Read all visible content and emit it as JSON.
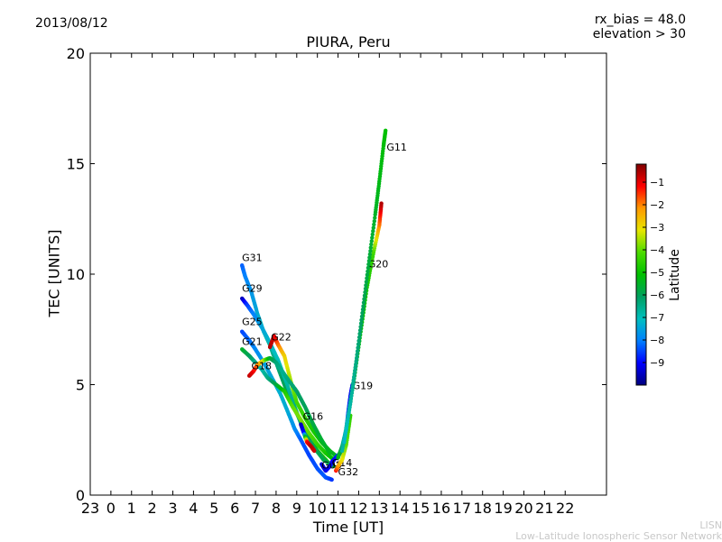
{
  "header": {
    "date": "2013/08/12",
    "rx_bias": "rx_bias = 48.0",
    "elevation": "elevation > 30"
  },
  "footer": {
    "credit_short": "LISN",
    "credit_long": "Low-Latitude Ionospheric Sensor Network"
  },
  "chart_data": {
    "type": "scatter",
    "title": "PIURA, Peru",
    "xlabel": "Time [UT]",
    "ylabel": "TEC [UNITS]",
    "xlim": [
      -1,
      24
    ],
    "ylim": [
      0,
      20
    ],
    "x_tick_labels": [
      "23",
      "0",
      "1",
      "2",
      "3",
      "4",
      "5",
      "6",
      "7",
      "8",
      "9",
      "10",
      "11",
      "12",
      "13",
      "14",
      "15",
      "16",
      "17",
      "18",
      "19",
      "20",
      "21",
      "22"
    ],
    "y_ticks": [
      0,
      5,
      10,
      15,
      20
    ],
    "colorbar": {
      "label": "Latitude",
      "min": -10,
      "max": -0.2,
      "ticks": [
        -1,
        -2,
        -3,
        -4,
        -5,
        -6,
        -7,
        -8,
        -9
      ],
      "tick_labels": [
        "−1",
        "−2",
        "−3",
        "−4",
        "−5",
        "−6",
        "−7",
        "−8",
        "−9"
      ],
      "colormap": [
        "#00007f",
        "#0000ff",
        "#007fff",
        "#00bfbf",
        "#00a060",
        "#00c000",
        "#4cdc00",
        "#e6e600",
        "#ff9900",
        "#ff0000",
        "#7f0000"
      ]
    },
    "series": [
      {
        "name": "G31",
        "points": [
          [
            6.35,
            10.4,
            -8.3
          ],
          [
            6.5,
            9.9,
            -8.0
          ],
          [
            6.8,
            9.2,
            -7.7
          ],
          [
            7.1,
            8.2,
            -7.4
          ],
          [
            7.4,
            7.4,
            -7.0
          ],
          [
            7.7,
            6.8,
            -6.7
          ],
          [
            8.0,
            6.0,
            -6.4
          ],
          [
            8.4,
            5.0,
            -6.0
          ],
          [
            8.8,
            4.1,
            -5.7
          ],
          [
            9.2,
            3.3,
            -5.4
          ],
          [
            9.6,
            2.5,
            -5.2
          ],
          [
            10.1,
            1.9,
            -5.0
          ],
          [
            10.5,
            1.5,
            -4.9
          ]
        ],
        "label_at": [
          6.35,
          10.6
        ]
      },
      {
        "name": "G29",
        "points": [
          [
            6.35,
            8.9,
            -9.6
          ],
          [
            6.6,
            8.6,
            -8.6
          ],
          [
            6.9,
            8.2,
            -8.0
          ],
          [
            7.3,
            7.6,
            -7.5
          ],
          [
            7.7,
            6.9,
            -7.2
          ],
          [
            8.1,
            6.1,
            -7.0
          ],
          [
            8.5,
            5.1,
            -6.8
          ],
          [
            8.9,
            4.0,
            -6.5
          ],
          [
            9.3,
            3.0,
            -6.2
          ],
          [
            9.8,
            2.2,
            -6.0
          ],
          [
            10.3,
            1.6,
            -5.9
          ],
          [
            10.8,
            1.3,
            -5.8
          ]
        ],
        "label_at": [
          6.35,
          9.2
        ]
      },
      {
        "name": "G25",
        "points": [
          [
            6.35,
            7.4,
            -8.5
          ],
          [
            6.7,
            7.0,
            -8.2
          ],
          [
            7.0,
            6.6,
            -7.9
          ],
          [
            7.4,
            6.0,
            -7.6
          ],
          [
            7.8,
            5.3,
            -7.4
          ],
          [
            8.2,
            4.6,
            -7.3
          ],
          [
            8.6,
            3.7,
            -7.4
          ],
          [
            8.9,
            3.0,
            -7.8
          ],
          [
            9.2,
            2.5,
            -8.3
          ],
          [
            9.6,
            1.8,
            -8.5
          ],
          [
            10.0,
            1.2,
            -8.4
          ],
          [
            10.4,
            0.8,
            -8.3
          ],
          [
            10.7,
            0.7,
            -8.6
          ]
        ],
        "label_at": [
          6.35,
          7.7
        ]
      },
      {
        "name": "G21",
        "points": [
          [
            6.35,
            6.6,
            -5.5
          ],
          [
            6.7,
            6.3,
            -6.0
          ],
          [
            7.0,
            6.0,
            -6.5
          ],
          [
            7.3,
            5.7,
            -6.9
          ],
          [
            7.6,
            5.3,
            -6.5
          ],
          [
            8.0,
            5.0,
            -5.8
          ],
          [
            8.4,
            4.7,
            -4.8
          ],
          [
            8.8,
            4.0,
            -4.0
          ],
          [
            9.2,
            3.4,
            -3.8
          ],
          [
            9.6,
            2.8,
            -4.0
          ],
          [
            10.0,
            2.3,
            -4.4
          ],
          [
            10.4,
            1.9,
            -4.8
          ],
          [
            10.8,
            1.6,
            -5.2
          ]
        ],
        "label_at": [
          6.35,
          6.8
        ]
      },
      {
        "name": "G22",
        "points": [
          [
            7.7,
            6.7,
            -0.6
          ],
          [
            7.9,
            7.2,
            -0.8
          ],
          [
            8.1,
            6.8,
            -1.8
          ],
          [
            8.4,
            6.3,
            -2.8
          ],
          [
            8.7,
            5.2,
            -3.6
          ],
          [
            9.0,
            4.2,
            -4.2
          ],
          [
            9.4,
            3.5,
            -4.5
          ],
          [
            9.8,
            2.9,
            -4.8
          ],
          [
            10.2,
            2.4,
            -5.0
          ],
          [
            10.6,
            2.0,
            -5.3
          ],
          [
            11.0,
            1.7,
            -5.6
          ]
        ],
        "label_at": [
          7.75,
          7.0
        ]
      },
      {
        "name": "G18",
        "points": [
          [
            6.7,
            5.4,
            -0.7
          ],
          [
            6.9,
            5.6,
            -1.0
          ],
          [
            7.1,
            5.9,
            -1.8
          ],
          [
            7.4,
            6.1,
            -3.2
          ],
          [
            7.7,
            6.2,
            -5.5
          ],
          [
            8.0,
            6.0,
            -6.3
          ],
          [
            8.3,
            5.6,
            -6.6
          ],
          [
            8.6,
            5.2,
            -6.4
          ],
          [
            9.0,
            4.7,
            -6.2
          ],
          [
            9.4,
            4.0,
            -6.0
          ],
          [
            9.8,
            3.2,
            -5.8
          ],
          [
            10.2,
            2.5,
            -5.6
          ],
          [
            10.6,
            1.9,
            -5.4
          ]
        ],
        "label_at": [
          6.8,
          5.7
        ]
      },
      {
        "name": "G16",
        "points": [
          [
            9.2,
            3.2,
            -9.6
          ],
          [
            9.35,
            2.8,
            -9.0
          ],
          [
            9.5,
            2.4,
            -1.2
          ],
          [
            9.7,
            2.2,
            -0.6
          ],
          [
            9.85,
            2.0,
            -0.8
          ]
        ],
        "label_at": [
          9.3,
          3.4
        ]
      },
      {
        "name": "G03",
        "points": [
          [
            10.2,
            1.4,
            -9.3
          ],
          [
            10.4,
            1.1,
            -9.2
          ],
          [
            10.6,
            1.3,
            -9.0
          ],
          [
            10.8,
            1.6,
            -8.7
          ]
        ],
        "label_at": [
          10.2,
          1.2
        ]
      },
      {
        "name": "G14",
        "points": [
          [
            10.7,
            1.5,
            -9.2
          ],
          [
            10.9,
            1.7,
            -8.9
          ],
          [
            11.1,
            1.9,
            -8.5
          ],
          [
            11.3,
            2.0,
            -8.2
          ]
        ],
        "label_at": [
          10.7,
          1.3
        ]
      },
      {
        "name": "G32",
        "points": [
          [
            10.9,
            1.1,
            -1.2
          ],
          [
            11.0,
            1.3,
            -2.0
          ],
          [
            11.2,
            1.6,
            -3.0
          ],
          [
            11.4,
            2.3,
            -4.0
          ],
          [
            11.6,
            3.6,
            -4.5
          ]
        ],
        "label_at": [
          11.0,
          0.9
        ]
      },
      {
        "name": "G19",
        "points": [
          [
            11.0,
            1.7,
            -5.2
          ],
          [
            11.2,
            2.2,
            -6.0
          ],
          [
            11.4,
            3.0,
            -8.0
          ],
          [
            11.5,
            3.8,
            -8.6
          ],
          [
            11.6,
            4.5,
            -9.0
          ],
          [
            11.7,
            5.0,
            -9.3
          ]
        ],
        "label_at": [
          11.7,
          4.8
        ]
      },
      {
        "name": "G20",
        "points": [
          [
            11.2,
            2.0,
            -6.8
          ],
          [
            11.5,
            3.6,
            -6.2
          ],
          [
            11.8,
            5.4,
            -5.6
          ],
          [
            12.1,
            7.4,
            -5.2
          ],
          [
            12.4,
            9.4,
            -4.8
          ],
          [
            12.7,
            10.9,
            -4.4
          ],
          [
            13.0,
            12.2,
            -2.0
          ],
          [
            13.1,
            13.2,
            -0.6
          ]
        ],
        "label_at": [
          12.45,
          10.3
        ]
      },
      {
        "name": "G11",
        "points": [
          [
            11.3,
            2.4,
            -7.2
          ],
          [
            11.6,
            4.2,
            -6.8
          ],
          [
            11.9,
            6.2,
            -6.4
          ],
          [
            12.2,
            8.4,
            -6.0
          ],
          [
            12.5,
            10.6,
            -5.7
          ],
          [
            12.8,
            12.7,
            -5.5
          ],
          [
            13.0,
            14.2,
            -5.3
          ],
          [
            13.2,
            15.8,
            -5.2
          ],
          [
            13.3,
            16.5,
            -5.1
          ]
        ],
        "label_at": [
          13.35,
          15.6
        ]
      }
    ]
  }
}
